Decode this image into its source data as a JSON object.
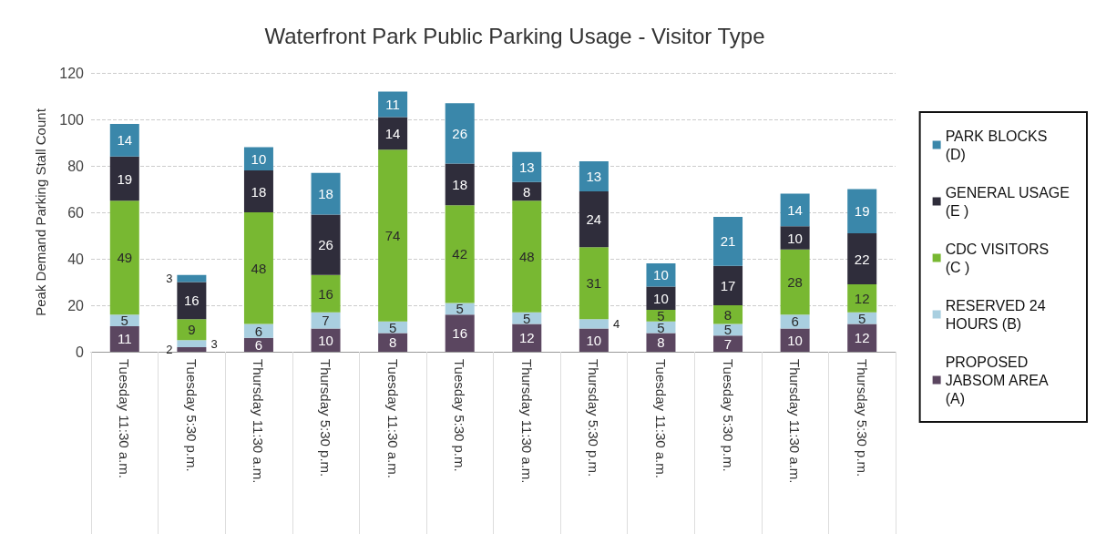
{
  "chart_data": {
    "type": "bar",
    "title": "Waterfront Park Public Parking Usage - Visitor Type",
    "ylabel": "Peak Demand Parking Stall Count",
    "categories": [
      "Tuesday 11:30 a.m.",
      "Tuesday 5:30 p.m.",
      "Thursday 11:30 a.m.",
      "Thursday 5:30 p.m.",
      "Tuesday 11:30 a.m.",
      "Tuesday 5:30 p.m.",
      "Thursday 11:30 a.m.",
      "Thursday 5:30 p.m.",
      "Tuesday 11:30 a.m.",
      "Tuesday 5:30 p.m.",
      "Thursday 11:30 a.m.",
      "Thursday 5:30 p.m."
    ],
    "stacked": true,
    "data_labels": true,
    "grid": "y",
    "legend": "right",
    "ylim": [
      0,
      120
    ],
    "yticks": [
      0,
      20,
      40,
      60,
      80,
      100,
      120
    ],
    "series": [
      {
        "name": "PROPOSED JABSOM AREA (A)",
        "color": "#5b4660",
        "values": [
          11,
          2,
          6,
          10,
          8,
          16,
          12,
          10,
          8,
          7,
          10,
          12
        ]
      },
      {
        "name": "RESERVED 24 HOURS (B)",
        "color": "#a9cfe0",
        "values": [
          5,
          3,
          6,
          7,
          5,
          5,
          5,
          4,
          5,
          5,
          6,
          5
        ]
      },
      {
        "name": "CDC VISITORS (C )",
        "color": "#78b832",
        "values": [
          49,
          9,
          48,
          16,
          74,
          42,
          48,
          31,
          5,
          8,
          28,
          12
        ]
      },
      {
        "name": "GENERAL USAGE (E )",
        "color": "#2f2d3b",
        "values": [
          19,
          16,
          18,
          26,
          14,
          18,
          8,
          24,
          10,
          17,
          10,
          22
        ]
      },
      {
        "name": "PARK BLOCKS (D)",
        "color": "#3a87aa",
        "values": [
          14,
          3,
          10,
          18,
          11,
          26,
          13,
          13,
          10,
          21,
          14,
          19
        ]
      }
    ]
  }
}
